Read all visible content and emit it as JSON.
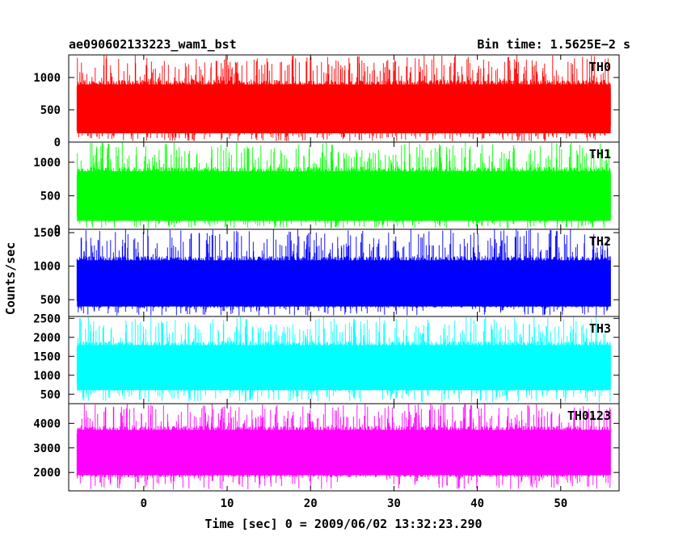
{
  "header": {
    "title": "ae090602133223_wam1_bst",
    "bin_time": "Bin time: 1.5625E−2 s"
  },
  "chart_data": {
    "type": "line",
    "xlabel": "Time [sec] 0 = 2009/06/02 13:32:23.290",
    "ylabel": "Counts/sec",
    "xlim": [
      -9,
      57
    ],
    "x_ticks": [
      0,
      10,
      20,
      30,
      40,
      50
    ],
    "data_range_x": [
      -8,
      56
    ],
    "panels": [
      {
        "name": "TH0",
        "color": "#ff0000",
        "ylim": [
          0,
          1350
        ],
        "y_ticks": [
          0,
          500,
          1000
        ],
        "band_low": 130,
        "band_high": 960,
        "spike_min": 0,
        "spike_max": 1350
      },
      {
        "name": "TH1",
        "color": "#00ff00",
        "ylim": [
          0,
          1300
        ],
        "y_ticks": [
          0,
          500,
          1000
        ],
        "band_low": 120,
        "band_high": 930,
        "spike_min": 0,
        "spike_max": 1300
      },
      {
        "name": "TH2",
        "color": "#0000ff",
        "ylim": [
          250,
          1550
        ],
        "y_ticks": [
          500,
          1000,
          1500
        ],
        "band_low": 380,
        "band_high": 1150,
        "spike_min": 250,
        "spike_max": 1550
      },
      {
        "name": "TH3",
        "color": "#00ffff",
        "ylim": [
          250,
          2550
        ],
        "y_ticks": [
          500,
          1000,
          1500,
          2000,
          2500
        ],
        "band_low": 580,
        "band_high": 1900,
        "spike_min": 250,
        "spike_max": 2550
      },
      {
        "name": "TH0123",
        "color": "#ff00ff",
        "ylim": [
          1250,
          4800
        ],
        "y_ticks": [
          2000,
          3000,
          4000
        ],
        "band_low": 1800,
        "band_high": 3900,
        "spike_min": 1250,
        "spike_max": 4800
      }
    ]
  }
}
